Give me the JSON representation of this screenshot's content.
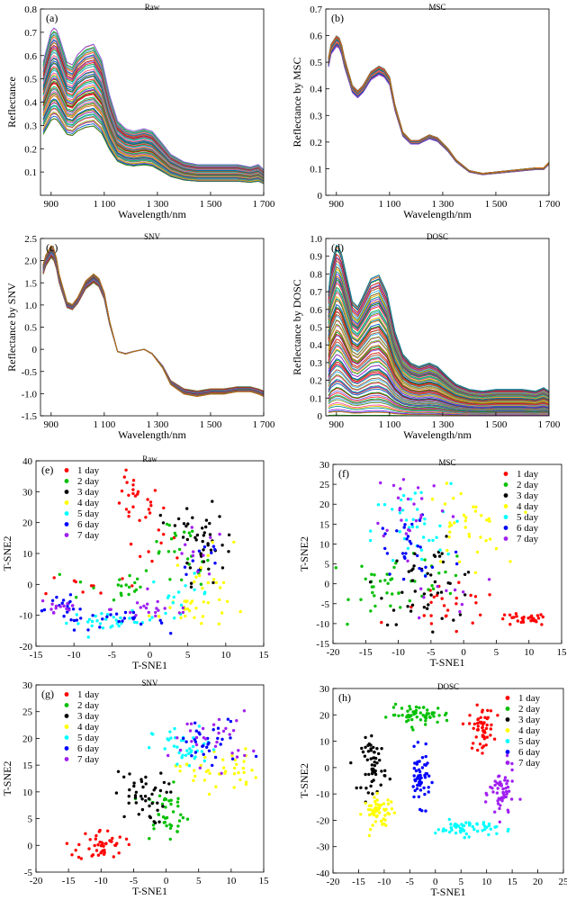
{
  "colors": {
    "palette": [
      "#c00000",
      "#1aa01a",
      "#0050c8",
      "#d07000",
      "#8a2be2",
      "#009090",
      "#e0c000",
      "#ff4fa0",
      "#6b8e23",
      "#3cb4ff",
      "#a0522d",
      "#00c060",
      "#ff2020",
      "#7b68ee"
    ]
  },
  "chart_data": [
    {
      "id": "a",
      "panel_label": "(a)",
      "type": "line",
      "title": "Raw",
      "xlabel": "Wavelength/nm",
      "ylabel": "Reflectance",
      "xlim": [
        860,
        1700
      ],
      "ylim": [
        0,
        0.8
      ],
      "xticks": [
        900,
        1100,
        1300,
        1500,
        1700
      ],
      "xtick_labels": [
        "900",
        "1 100",
        "1 300",
        "1 500",
        "1 700"
      ],
      "yticks": [
        0.1,
        0.2,
        0.3,
        0.4,
        0.5,
        0.6,
        0.7,
        0.8
      ],
      "ytick_labels": [
        "0.1",
        "0.2",
        "0.3",
        "0.4",
        "0.5",
        "0.6",
        "0.7",
        "0.8"
      ],
      "template": {
        "x": [
          870,
          880,
          900,
          915,
          930,
          960,
          980,
          1000,
          1030,
          1060,
          1090,
          1120,
          1150,
          1180,
          1210,
          1250,
          1280,
          1320,
          1350,
          1400,
          1450,
          1500,
          1550,
          1600,
          1650,
          1680,
          1700
        ],
        "y": [
          0.52,
          0.56,
          0.64,
          0.66,
          0.62,
          0.52,
          0.51,
          0.55,
          0.58,
          0.59,
          0.53,
          0.39,
          0.29,
          0.26,
          0.25,
          0.26,
          0.25,
          0.2,
          0.16,
          0.13,
          0.12,
          0.12,
          0.12,
          0.12,
          0.11,
          0.12,
          0.1
        ]
      },
      "curve_range": {
        "scale_min": 0.5,
        "scale_max": 1.1,
        "count": 70
      }
    },
    {
      "id": "b",
      "panel_label": "(b)",
      "type": "line",
      "title": "MSC",
      "xlabel": "Wavelength/nm",
      "ylabel": "Reflectance by MSC",
      "xlim": [
        860,
        1700
      ],
      "ylim": [
        0,
        0.7
      ],
      "xticks": [
        900,
        1100,
        1300,
        1500,
        1700
      ],
      "xtick_labels": [
        "900",
        "1 100",
        "1 300",
        "1 500",
        "1 700"
      ],
      "yticks": [
        0,
        0.1,
        0.2,
        0.3,
        0.4,
        0.5,
        0.6,
        0.7
      ],
      "ytick_labels": [
        "0",
        "0.1",
        "0.2",
        "0.3",
        "0.4",
        "0.5",
        "0.6",
        "0.7"
      ],
      "template": {
        "x": [
          870,
          880,
          900,
          915,
          930,
          960,
          980,
          1000,
          1030,
          1060,
          1080,
          1100,
          1120,
          1150,
          1180,
          1210,
          1250,
          1280,
          1320,
          1350,
          1400,
          1450,
          1500,
          1550,
          1600,
          1650,
          1680,
          1700
        ],
        "y": [
          0.5,
          0.55,
          0.58,
          0.57,
          0.5,
          0.4,
          0.38,
          0.4,
          0.45,
          0.47,
          0.46,
          0.43,
          0.33,
          0.23,
          0.2,
          0.2,
          0.22,
          0.21,
          0.17,
          0.13,
          0.09,
          0.08,
          0.085,
          0.09,
          0.095,
          0.1,
          0.1,
          0.12
        ]
      },
      "curve_range": {
        "scale_min": 0.97,
        "scale_max": 1.03,
        "count": 60
      }
    },
    {
      "id": "c",
      "panel_label": "(c)",
      "type": "line",
      "title": "SNV",
      "xlabel": "Wavelength/nm",
      "ylabel": "Reflectance by SNV",
      "xlim": [
        860,
        1700
      ],
      "ylim": [
        -1.5,
        2.5
      ],
      "xticks": [
        900,
        1100,
        1300,
        1500,
        1700
      ],
      "xtick_labels": [
        "900",
        "1 100",
        "1 300",
        "1 500",
        "1 700"
      ],
      "yticks": [
        -1.5,
        -1.0,
        -0.5,
        0,
        0.5,
        1.0,
        1.5,
        2.0,
        2.5
      ],
      "ytick_labels": [
        "-1.5",
        "-1.0",
        "-0.5",
        "0",
        "0.5",
        "1.0",
        "1.5",
        "2.0",
        "2.5"
      ],
      "template": {
        "x": [
          870,
          880,
          900,
          915,
          930,
          960,
          980,
          1000,
          1030,
          1060,
          1080,
          1100,
          1120,
          1150,
          1180,
          1210,
          1250,
          1280,
          1320,
          1350,
          1400,
          1450,
          1500,
          1550,
          1600,
          1650,
          1680,
          1700
        ],
        "y": [
          1.8,
          2.0,
          2.2,
          2.1,
          1.6,
          1.0,
          0.95,
          1.1,
          1.45,
          1.6,
          1.5,
          1.2,
          0.6,
          -0.05,
          -0.1,
          -0.05,
          0.0,
          -0.1,
          -0.4,
          -0.75,
          -0.95,
          -1.0,
          -0.95,
          -0.95,
          -0.9,
          -0.9,
          -0.95,
          -1.0
        ]
      },
      "curve_range": {
        "scale_min": 0.94,
        "scale_max": 1.06,
        "count": 60
      }
    },
    {
      "id": "d",
      "panel_label": "(d)",
      "type": "line",
      "title": "DOSC",
      "xlabel": "Wavelength/nm",
      "ylabel": "Reflectance by DOSC",
      "xlim": [
        860,
        1700
      ],
      "ylim": [
        0,
        1.0
      ],
      "xticks": [
        900,
        1100,
        1300,
        1500,
        1700
      ],
      "xtick_labels": [
        "900",
        "1 100",
        "1 300",
        "1 500",
        "1 700"
      ],
      "yticks": [
        0,
        0.1,
        0.2,
        0.3,
        0.4,
        0.5,
        0.6,
        0.7,
        0.8,
        0.9,
        1.0
      ],
      "ytick_labels": [
        "0",
        "0.1",
        "0.2",
        "0.3",
        "0.4",
        "0.5",
        "0.6",
        "0.7",
        "0.8",
        "0.9",
        "1.0"
      ],
      "template": {
        "x": [
          870,
          880,
          900,
          915,
          930,
          960,
          980,
          1000,
          1030,
          1060,
          1090,
          1120,
          1150,
          1180,
          1210,
          1250,
          1280,
          1320,
          1350,
          1400,
          1450,
          1500,
          1550,
          1600,
          1650,
          1680,
          1700
        ],
        "y": [
          0.7,
          0.85,
          0.97,
          0.95,
          0.85,
          0.65,
          0.62,
          0.68,
          0.78,
          0.8,
          0.7,
          0.48,
          0.35,
          0.3,
          0.28,
          0.3,
          0.28,
          0.22,
          0.18,
          0.15,
          0.14,
          0.15,
          0.15,
          0.15,
          0.14,
          0.16,
          0.14
        ]
      },
      "curve_range": {
        "scale_min": 0.0,
        "scale_max": 1.0,
        "count": 90
      }
    },
    {
      "id": "e",
      "panel_label": "(e)",
      "type": "scatter",
      "title": "Raw",
      "xlabel": "T-SNE1",
      "ylabel": "T-SNE2",
      "xlim": [
        -15,
        15
      ],
      "ylim": [
        -20,
        40
      ],
      "xticks": [
        -15,
        -10,
        -5,
        0,
        5,
        10,
        15
      ],
      "yticks": [
        -20,
        -10,
        0,
        10,
        20,
        30,
        40
      ],
      "legend_position": "top-left",
      "series": [
        {
          "name": "1 day",
          "color": "#ff0000",
          "clusters": [
            {
              "cx": -2,
              "cy": 27,
              "sx": 1.8,
              "sy": 4,
              "n": 25
            },
            {
              "cx": 1,
              "cy": 12,
              "sx": 2,
              "sy": 4,
              "n": 10
            },
            {
              "cx": -8,
              "cy": 0,
              "sx": 3,
              "sy": 2,
              "n": 10
            }
          ]
        },
        {
          "name": "2 day",
          "color": "#00c000",
          "clusters": [
            {
              "cx": -5,
              "cy": 0,
              "sx": 3,
              "sy": 3,
              "n": 20
            },
            {
              "cx": 3,
              "cy": 15,
              "sx": 2,
              "sy": 4,
              "n": 15
            },
            {
              "cx": 7,
              "cy": 5,
              "sx": 2,
              "sy": 4,
              "n": 10
            }
          ]
        },
        {
          "name": "3 day",
          "color": "#000000",
          "clusters": [
            {
              "cx": 7,
              "cy": 13,
              "sx": 1.5,
              "sy": 6,
              "n": 35
            },
            {
              "cx": 5,
              "cy": 20,
              "sx": 2,
              "sy": 2,
              "n": 10
            }
          ]
        },
        {
          "name": "4 day",
          "color": "#ffff00",
          "clusters": [
            {
              "cx": 5,
              "cy": -8,
              "sx": 2.5,
              "sy": 3,
              "n": 25
            },
            {
              "cx": 8,
              "cy": 5,
              "sx": 1.5,
              "sy": 5,
              "n": 15
            }
          ]
        },
        {
          "name": "5 day",
          "color": "#00ffff",
          "clusters": [
            {
              "cx": -5,
              "cy": -12,
              "sx": 3,
              "sy": 1.5,
              "n": 30
            },
            {
              "cx": 4,
              "cy": -3,
              "sx": 2,
              "sy": 3,
              "n": 15
            }
          ]
        },
        {
          "name": "6 day",
          "color": "#0000ff",
          "clusters": [
            {
              "cx": -11,
              "cy": -8,
              "sx": 2,
              "sy": 2,
              "n": 20
            },
            {
              "cx": -4,
              "cy": -12,
              "sx": 3,
              "sy": 1.5,
              "n": 20
            },
            {
              "cx": 7,
              "cy": 8,
              "sx": 1.5,
              "sy": 4,
              "n": 10
            }
          ]
        },
        {
          "name": "7 day",
          "color": "#a020f0",
          "clusters": [
            {
              "cx": -12,
              "cy": -7,
              "sx": 1.5,
              "sy": 2,
              "n": 15
            },
            {
              "cx": 1,
              "cy": -8,
              "sx": 3,
              "sy": 2,
              "n": 20
            },
            {
              "cx": 6,
              "cy": 10,
              "sx": 2,
              "sy": 4,
              "n": 10
            }
          ]
        }
      ]
    },
    {
      "id": "f",
      "panel_label": "(f)",
      "type": "scatter",
      "title": "MSC",
      "xlabel": "T-SNE1",
      "ylabel": "T-SNE2",
      "xlim": [
        -20,
        15
      ],
      "ylim": [
        -15,
        30
      ],
      "xticks": [
        -20,
        -15,
        -10,
        -5,
        0,
        5,
        10,
        15
      ],
      "yticks": [
        -15,
        -10,
        -5,
        0,
        5,
        10,
        15,
        20,
        25,
        30
      ],
      "legend_position": "top-right",
      "series": [
        {
          "name": "1 day",
          "color": "#ff0000",
          "clusters": [
            {
              "cx": 9,
              "cy": -9,
              "sx": 2,
              "sy": 0.8,
              "n": 30
            },
            {
              "cx": -2,
              "cy": -7,
              "sx": 4,
              "sy": 3,
              "n": 25
            }
          ]
        },
        {
          "name": "2 day",
          "color": "#00c000",
          "clusters": [
            {
              "cx": -11,
              "cy": 0,
              "sx": 3,
              "sy": 4,
              "n": 35
            },
            {
              "cx": -5,
              "cy": 3,
              "sx": 3,
              "sy": 3,
              "n": 10
            }
          ]
        },
        {
          "name": "3 day",
          "color": "#000000",
          "clusters": [
            {
              "cx": -5,
              "cy": 0,
              "sx": 4,
              "sy": 5,
              "n": 45
            }
          ]
        },
        {
          "name": "4 day",
          "color": "#ffff00",
          "clusters": [
            {
              "cx": 0,
              "cy": 14,
              "sx": 3,
              "sy": 5,
              "n": 35
            }
          ]
        },
        {
          "name": "5 day",
          "color": "#00ffff",
          "clusters": [
            {
              "cx": -8,
              "cy": 13,
              "sx": 3,
              "sy": 6,
              "n": 40
            }
          ]
        },
        {
          "name": "6 day",
          "color": "#0000ff",
          "clusters": [
            {
              "cx": -8,
              "cy": 8,
              "sx": 4,
              "sy": 7,
              "n": 30
            }
          ]
        },
        {
          "name": "7 day",
          "color": "#a020f0",
          "clusters": [
            {
              "cx": -8,
              "cy": 20,
              "sx": 3,
              "sy": 5,
              "n": 25
            },
            {
              "cx": -2,
              "cy": -2,
              "sx": 4,
              "sy": 4,
              "n": 10
            }
          ]
        }
      ]
    },
    {
      "id": "g",
      "panel_label": "(g)",
      "type": "scatter",
      "title": "SNV",
      "xlabel": "T-SNE1",
      "ylabel": "T-SNE2",
      "xlim": [
        -20,
        15
      ],
      "ylim": [
        -5,
        30
      ],
      "xticks": [
        -20,
        -15,
        -10,
        -5,
        0,
        5,
        10,
        15
      ],
      "yticks": [
        -5,
        0,
        5,
        10,
        15,
        20,
        25,
        30
      ],
      "legend_position": "top-left",
      "series": [
        {
          "name": "1 day",
          "color": "#ff0000",
          "clusters": [
            {
              "cx": -10,
              "cy": 0,
              "sx": 1.8,
              "sy": 1.5,
              "n": 45
            }
          ]
        },
        {
          "name": "2 day",
          "color": "#00c000",
          "clusters": [
            {
              "cx": 0,
              "cy": 6,
              "sx": 1.8,
              "sy": 2.5,
              "n": 40
            }
          ]
        },
        {
          "name": "3 day",
          "color": "#000000",
          "clusters": [
            {
              "cx": -4,
              "cy": 9,
              "sx": 2,
              "sy": 2.5,
              "n": 45
            }
          ]
        },
        {
          "name": "4 day",
          "color": "#ffff00",
          "clusters": [
            {
              "cx": 8,
              "cy": 14,
              "sx": 3,
              "sy": 2,
              "n": 40
            }
          ]
        },
        {
          "name": "5 day",
          "color": "#00ffff",
          "clusters": [
            {
              "cx": 3,
              "cy": 18,
              "sx": 2.5,
              "sy": 2,
              "n": 40
            }
          ]
        },
        {
          "name": "6 day",
          "color": "#0000ff",
          "clusters": [
            {
              "cx": 7,
              "cy": 19,
              "sx": 3,
              "sy": 2.5,
              "n": 30
            }
          ]
        },
        {
          "name": "7 day",
          "color": "#a020f0",
          "clusters": [
            {
              "cx": 7,
              "cy": 20,
              "sx": 3,
              "sy": 2.5,
              "n": 30
            }
          ]
        }
      ]
    },
    {
      "id": "h",
      "panel_label": "(h)",
      "type": "scatter",
      "title": "DOSC",
      "xlabel": "T-SNE1",
      "ylabel": "T-SNE2",
      "xlim": [
        -20,
        25
      ],
      "ylim": [
        -40,
        30
      ],
      "xticks": [
        -20,
        -15,
        -10,
        -5,
        0,
        5,
        10,
        15,
        20,
        25
      ],
      "yticks": [
        -40,
        -30,
        -20,
        -10,
        0,
        10,
        20,
        30
      ],
      "legend_position": "top-right",
      "series": [
        {
          "name": "1 day",
          "color": "#ff0000",
          "clusters": [
            {
              "cx": 9,
              "cy": 15,
              "sx": 1.2,
              "sy": 4,
              "n": 55
            }
          ]
        },
        {
          "name": "2 day",
          "color": "#00c000",
          "clusters": [
            {
              "cx": -3,
              "cy": 20,
              "sx": 3,
              "sy": 1.8,
              "n": 55
            }
          ]
        },
        {
          "name": "3 day",
          "color": "#000000",
          "clusters": [
            {
              "cx": -12,
              "cy": 1,
              "sx": 1.2,
              "sy": 5,
              "n": 55
            }
          ]
        },
        {
          "name": "4 day",
          "color": "#ffff00",
          "clusters": [
            {
              "cx": -11,
              "cy": -17,
              "sx": 1.5,
              "sy": 3,
              "n": 55
            }
          ]
        },
        {
          "name": "5 day",
          "color": "#00ffff",
          "clusters": [
            {
              "cx": 6,
              "cy": -23,
              "sx": 3,
              "sy": 1.5,
              "n": 55
            }
          ]
        },
        {
          "name": "6 day",
          "color": "#0000ff",
          "clusters": [
            {
              "cx": -3,
              "cy": -4,
              "sx": 1,
              "sy": 5,
              "n": 55
            }
          ]
        },
        {
          "name": "7 day",
          "color": "#a020f0",
          "clusters": [
            {
              "cx": 13,
              "cy": -10,
              "sx": 1.2,
              "sy": 5,
              "n": 55
            }
          ]
        }
      ]
    }
  ]
}
